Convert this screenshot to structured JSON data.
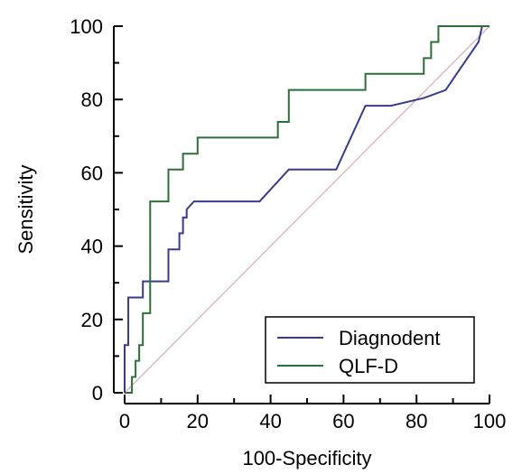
{
  "chart_data": {
    "type": "line",
    "xlabel": "100-Specificity",
    "ylabel": "Sensitivity",
    "xlim": [
      0,
      100
    ],
    "ylim": [
      0,
      100
    ],
    "xticks": [
      0,
      20,
      40,
      60,
      80,
      100
    ],
    "yticks": [
      0,
      20,
      40,
      60,
      80,
      100
    ],
    "grid": false,
    "legend_position": "bottom-right",
    "reference_line": {
      "x": [
        0,
        100
      ],
      "y": [
        0,
        100
      ],
      "color": "#c8a0b0"
    },
    "series": [
      {
        "name": "Diagnodent",
        "color": "#3a3a8c",
        "x": [
          0,
          0,
          1,
          1,
          5,
          5,
          12,
          12,
          15,
          15,
          16,
          16,
          17,
          17,
          19,
          37,
          45,
          58,
          66,
          73,
          82,
          88,
          91,
          97,
          98,
          100
        ],
        "y": [
          0,
          13,
          13,
          26,
          26,
          30.4,
          30.4,
          39.1,
          39.1,
          43.5,
          43.5,
          47.8,
          47.8,
          50,
          52.2,
          52.2,
          60.9,
          60.9,
          78.3,
          78.3,
          80.4,
          82.6,
          87,
          95.7,
          100,
          100
        ]
      },
      {
        "name": "QLF-D",
        "color": "#2e6e38",
        "x": [
          0,
          2,
          2,
          3,
          3,
          4,
          4,
          5,
          5,
          7,
          7,
          12,
          12,
          16,
          16,
          20,
          20,
          42,
          42,
          45,
          45,
          66,
          66,
          82,
          82,
          84,
          84,
          86,
          86,
          87,
          87,
          100
        ],
        "y": [
          0,
          0,
          4.3,
          4.3,
          8.7,
          8.7,
          13,
          13,
          21.7,
          21.7,
          52.2,
          52.2,
          60.9,
          60.9,
          65.2,
          65.2,
          69.6,
          69.6,
          73.9,
          73.9,
          82.6,
          82.6,
          87,
          87,
          91.3,
          91.3,
          95.7,
          95.7,
          100,
          100,
          100,
          100
        ]
      }
    ]
  },
  "colors": {
    "axis": "#000000",
    "diagnodent": "#3a3a8c",
    "qlfd": "#2e6e38",
    "reference": "#c8a0b0"
  }
}
